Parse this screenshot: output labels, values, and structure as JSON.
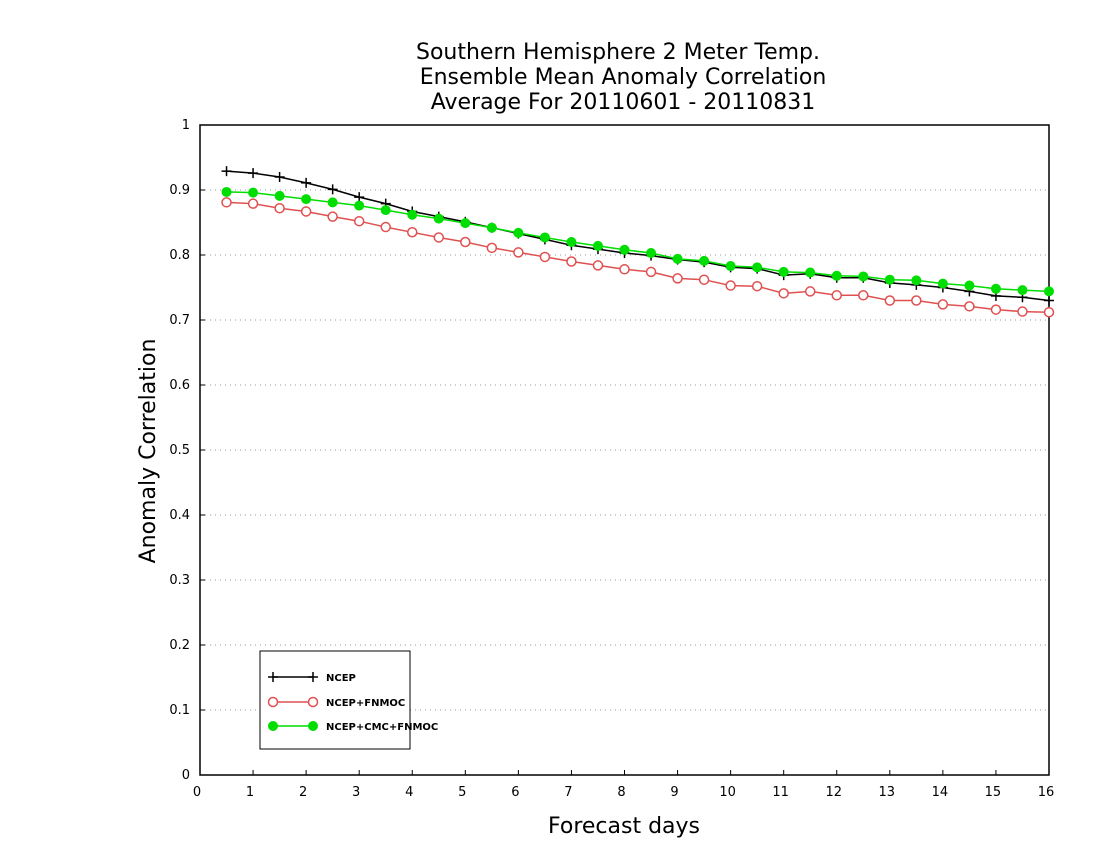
{
  "chart_data": {
    "type": "line",
    "title_lines": [
      "Southern Hemisphere 2 Meter Temp.",
      "Ensemble Mean Anomaly Correlation",
      "Average For 20110601 - 20110831"
    ],
    "xlabel": "Forecast days",
    "ylabel": "Anomaly Correlation",
    "xlim": [
      0,
      16
    ],
    "ylim": [
      0,
      1
    ],
    "x_ticks": [
      0,
      1,
      2,
      3,
      4,
      5,
      6,
      7,
      8,
      9,
      10,
      11,
      12,
      13,
      14,
      15,
      16
    ],
    "y_ticks": [
      0,
      0.1,
      0.2,
      0.3,
      0.4,
      0.5,
      0.6,
      0.7,
      0.8,
      0.9,
      1
    ],
    "y_tick_labels": [
      "0",
      "0.1",
      "0.2",
      "0.3",
      "0.4",
      "0.5",
      "0.6",
      "0.7",
      "0.8",
      "0.9",
      "1"
    ],
    "grid": "horizontal dotted",
    "legend_position": "bottom-left",
    "x": [
      0.5,
      1,
      1.5,
      2,
      2.5,
      3,
      3.5,
      4,
      4.5,
      5,
      5.5,
      6,
      6.5,
      7,
      7.5,
      8,
      8.5,
      9,
      9.5,
      10,
      10.5,
      11,
      11.5,
      12,
      12.5,
      13,
      13.5,
      14,
      14.5,
      15,
      15.5,
      16
    ],
    "series": [
      {
        "name": "NCEP",
        "color": "#000000",
        "marker": "plus",
        "values": [
          0.929,
          0.926,
          0.92,
          0.911,
          0.901,
          0.889,
          0.879,
          0.867,
          0.859,
          0.851,
          0.842,
          0.833,
          0.824,
          0.815,
          0.809,
          0.803,
          0.799,
          0.793,
          0.789,
          0.781,
          0.779,
          0.769,
          0.771,
          0.765,
          0.765,
          0.757,
          0.754,
          0.75,
          0.744,
          0.737,
          0.735,
          0.73
        ]
      },
      {
        "name": "NCEP+FNMOC",
        "color": "#e05050",
        "marker": "open-circle",
        "values": [
          0.881,
          0.879,
          0.872,
          0.867,
          0.859,
          0.852,
          0.843,
          0.835,
          0.827,
          0.82,
          0.811,
          0.804,
          0.797,
          0.79,
          0.784,
          0.778,
          0.774,
          0.764,
          0.762,
          0.753,
          0.752,
          0.741,
          0.744,
          0.738,
          0.738,
          0.73,
          0.73,
          0.724,
          0.721,
          0.716,
          0.713,
          0.712
        ]
      },
      {
        "name": "NCEP+CMC+FNMOC",
        "color": "#00dd00",
        "marker": "filled-circle",
        "values": [
          0.897,
          0.896,
          0.891,
          0.886,
          0.881,
          0.876,
          0.869,
          0.862,
          0.856,
          0.849,
          0.842,
          0.834,
          0.827,
          0.82,
          0.814,
          0.808,
          0.803,
          0.794,
          0.791,
          0.783,
          0.781,
          0.774,
          0.773,
          0.768,
          0.767,
          0.762,
          0.761,
          0.756,
          0.753,
          0.748,
          0.746,
          0.744
        ]
      }
    ]
  }
}
